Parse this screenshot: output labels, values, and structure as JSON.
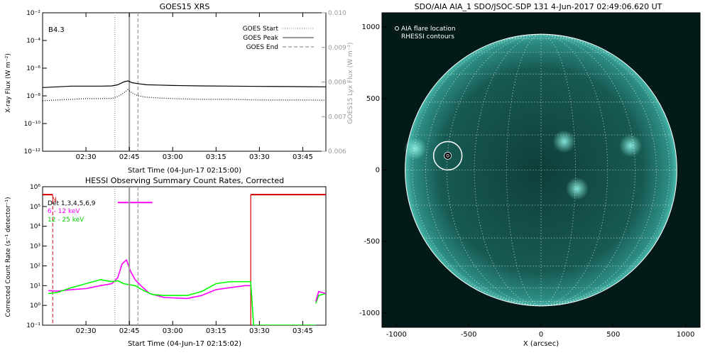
{
  "chart_data": [
    {
      "type": "line",
      "title": "GOES15 XRS",
      "xlabel": "Start Time (04-Jun-17 02:15:00)",
      "ylabel": "X-ray Flux (W m⁻²)",
      "y2label": "GOES15 Lyx Flux (W m⁻²)",
      "x_ticks": [
        "02:30",
        "02:45",
        "03:00",
        "03:15",
        "03:30",
        "03:45"
      ],
      "y_ticks": [
        "10⁻²",
        "10⁻⁴",
        "10⁻⁶",
        "10⁻⁸",
        "10⁻¹⁰",
        "10⁻¹²"
      ],
      "y2_ticks": [
        "0.010",
        "0.009",
        "0.008",
        "0.007",
        "0.006"
      ],
      "x_range_minutes": [
        0,
        98
      ],
      "y_log_range": [
        -12,
        -2
      ],
      "y2_range": [
        0.006,
        0.01
      ],
      "annotation": "B4.3",
      "legend": {
        "placement": "top-right",
        "entries": [
          {
            "label": "GOES Start",
            "style": "dotted",
            "minute": 25
          },
          {
            "label": "GOES Peak",
            "style": "solid",
            "minute": 30
          },
          {
            "label": "GOES End",
            "style": "dashed",
            "minute": 33
          }
        ]
      },
      "series": [
        {
          "name": "",
          "color": "#000000",
          "style": "solid",
          "x": [
            0,
            5,
            10,
            15,
            20,
            24,
            26,
            28,
            29.5,
            31,
            33,
            36,
            40,
            45,
            55,
            65,
            75,
            85,
            92,
            98
          ],
          "y": [
            -7.4,
            -7.35,
            -7.3,
            -7.3,
            -7.3,
            -7.28,
            -7.2,
            -7.0,
            -6.92,
            -7.05,
            -7.12,
            -7.2,
            -7.22,
            -7.25,
            -7.28,
            -7.3,
            -7.32,
            -7.33,
            -7.34,
            -7.35
          ]
        },
        {
          "name": "",
          "color": "#000000",
          "style": "dotted",
          "x": [
            0,
            5,
            10,
            15,
            20,
            24,
            26,
            28,
            29.5,
            31,
            33,
            36,
            40,
            45,
            55,
            65,
            75,
            85,
            92,
            98
          ],
          "y": [
            -8.35,
            -8.3,
            -8.25,
            -8.2,
            -8.2,
            -8.18,
            -8.05,
            -7.8,
            -7.55,
            -7.8,
            -8.0,
            -8.1,
            -8.15,
            -8.2,
            -8.25,
            -8.25,
            -8.3,
            -8.3,
            -8.3,
            -8.32
          ]
        }
      ]
    },
    {
      "type": "line",
      "title": "HESSI Observing Summary Count Rates, Corrected",
      "xlabel": "Start Time (04-Jun-17 02:15:02)",
      "ylabel": "Corrected Count Rate (s⁻¹ detector⁻¹)",
      "x_ticks": [
        "02:30",
        "02:45",
        "03:00",
        "03:15",
        "03:30",
        "03:45"
      ],
      "y_ticks": [
        "10⁶",
        "10⁵",
        "10⁴",
        "10³",
        "10²",
        "10¹",
        "10⁰",
        "10⁻¹"
      ],
      "x_range_minutes": [
        0,
        98
      ],
      "y_log_range": [
        -1,
        6
      ],
      "legend_text": [
        "Det 1,3,4,5,6,9",
        "6 - 12 keV",
        "12 - 25 keV"
      ],
      "flag_labels": [
        "N"
      ],
      "vlines": [
        {
          "style": "dotted",
          "minute": 25
        },
        {
          "style": "solid",
          "minute": 30
        },
        {
          "style": "dashed",
          "minute": 33
        }
      ],
      "red_markers": {
        "night_dashed_minute": 3.5,
        "saa_start_minute": 72
      },
      "magenta_bar": {
        "x": [
          26,
          38
        ],
        "y_log": 5.2
      },
      "series": [
        {
          "name": "6 - 12 keV",
          "color": "#ff00ff",
          "x": [
            2,
            5,
            10,
            15,
            20,
            24,
            26,
            27.5,
            29,
            30.5,
            32,
            34,
            37,
            42,
            50,
            55,
            60,
            65,
            70,
            72
          ],
          "y": [
            0.75,
            0.72,
            0.8,
            0.85,
            1.0,
            1.1,
            1.4,
            2.1,
            2.3,
            1.7,
            1.3,
            1.0,
            0.6,
            0.4,
            0.35,
            0.5,
            0.8,
            0.9,
            1.0,
            1.0
          ]
        },
        {
          "name": "12 - 25 keV",
          "color": "#00ff00",
          "x": [
            2,
            5,
            10,
            15,
            20,
            24,
            26,
            28,
            30,
            32,
            35,
            38,
            42,
            50,
            55,
            60,
            65,
            70,
            72
          ],
          "y": [
            0.6,
            0.65,
            0.9,
            1.1,
            1.3,
            1.2,
            1.25,
            1.1,
            1.05,
            1.0,
            0.75,
            0.55,
            0.5,
            0.5,
            0.7,
            1.1,
            1.2,
            1.2,
            1.2
          ]
        },
        {
          "name": "",
          "color": "#00ff00",
          "x": [
            72,
            73,
            85,
            94.5
          ],
          "y": [
            1.2,
            -1.0,
            -1.0,
            -1.0
          ]
        },
        {
          "name": "",
          "color": "#00ff00",
          "x": [
            94.5,
            95.5,
            98
          ],
          "y": [
            0.1,
            0.5,
            0.6
          ]
        },
        {
          "name": "",
          "color": "#ff00ff",
          "x": [
            94.5,
            95.5,
            98
          ],
          "y": [
            0.2,
            0.7,
            0.6
          ]
        }
      ]
    },
    {
      "type": "scatter",
      "title": "SDO/AIA AIA_1 SDO/JSOC-SDP 131  4-Jun-2017 02:49:06.620 UT",
      "xlabel": "X (arcsec)",
      "ylabel": "",
      "x_ticks": [
        "-1000",
        "-500",
        "0",
        "500",
        "1000"
      ],
      "y_ticks": [
        "1000",
        "500",
        "0",
        "-500",
        "-1000"
      ],
      "xlim": [
        -1100,
        1100
      ],
      "ylim": [
        -1100,
        1100
      ],
      "legend_text": [
        "AIA flare location",
        "RHESSI contours"
      ],
      "solar_radius_arcsec": 945,
      "points": [
        {
          "x": -645,
          "y": 100,
          "marker": "circle-with-flare"
        }
      ],
      "image_colors": {
        "background": "#041a18",
        "disk": "#14544e",
        "limb_glow": "#3aa69a",
        "grid": "#ffffff"
      },
      "bright_regions": [
        {
          "x": -870,
          "y": 150
        },
        {
          "x": 160,
          "y": 200
        },
        {
          "x": 620,
          "y": 170
        },
        {
          "x": 250,
          "y": -130
        }
      ]
    }
  ]
}
